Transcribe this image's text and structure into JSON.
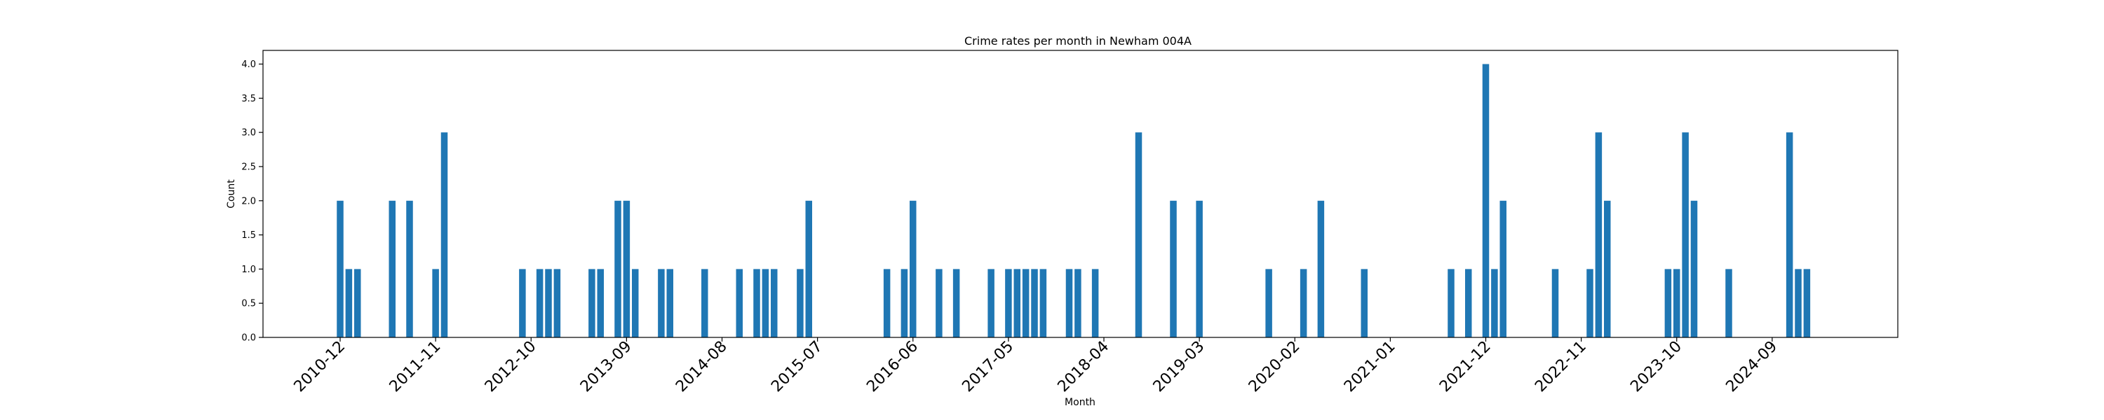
{
  "chart_data": {
    "type": "bar",
    "title": "Crime rates per month in Newham 004A",
    "xlabel": "Month",
    "ylabel": "Count",
    "ylim": [
      0,
      4.2
    ],
    "yticks": [
      "0.0",
      "0.5",
      "1.0",
      "1.5",
      "2.0",
      "2.5",
      "3.0",
      "3.5",
      "4.0"
    ],
    "xticks": [
      "2010-12",
      "2011-11",
      "2012-10",
      "2013-09",
      "2014-08",
      "2015-07",
      "2016-06",
      "2017-05",
      "2018-04",
      "2019-03",
      "2020-02",
      "2021-01",
      "2021-12",
      "2022-11",
      "2023-10",
      "2024-09"
    ],
    "grid": false,
    "bar_color": "#1f77b4",
    "categories": [
      "2010-12",
      "2011-01",
      "2011-02",
      "2011-06",
      "2011-08",
      "2011-11",
      "2011-12",
      "2012-09",
      "2012-11",
      "2012-12",
      "2013-01",
      "2013-05",
      "2013-06",
      "2013-08",
      "2013-09",
      "2013-10",
      "2014-01",
      "2014-02",
      "2014-06",
      "2014-10",
      "2014-12",
      "2015-01",
      "2015-02",
      "2015-05",
      "2015-06",
      "2016-03",
      "2016-05",
      "2016-06",
      "2016-09",
      "2016-11",
      "2017-03",
      "2017-05",
      "2017-06",
      "2017-07",
      "2017-08",
      "2017-09",
      "2017-12",
      "2018-01",
      "2018-03",
      "2018-08",
      "2018-12",
      "2019-03",
      "2019-11",
      "2020-03",
      "2020-05",
      "2020-10",
      "2021-08",
      "2021-10",
      "2021-12",
      "2022-01",
      "2022-02",
      "2022-08",
      "2022-12",
      "2023-01",
      "2023-02",
      "2023-09",
      "2023-10",
      "2023-11",
      "2023-12",
      "2024-04",
      "2024-11",
      "2024-12",
      "2025-01"
    ],
    "values": [
      2,
      1,
      1,
      2,
      2,
      1,
      3,
      1,
      1,
      1,
      1,
      1,
      1,
      2,
      2,
      1,
      1,
      1,
      1,
      1,
      1,
      1,
      1,
      1,
      2,
      1,
      1,
      2,
      1,
      1,
      1,
      1,
      1,
      1,
      1,
      1,
      1,
      1,
      1,
      3,
      2,
      2,
      1,
      1,
      2,
      1,
      1,
      1,
      4,
      1,
      2,
      1,
      1,
      3,
      2,
      1,
      1,
      3,
      2,
      1,
      3,
      1,
      1
    ]
  }
}
